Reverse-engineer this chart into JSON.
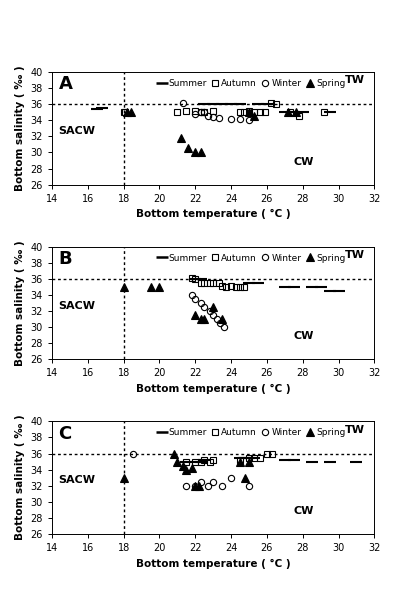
{
  "panels": [
    "A",
    "B",
    "C"
  ],
  "xlim": [
    14,
    32
  ],
  "ylim": [
    26,
    40
  ],
  "xticks": [
    14,
    16,
    18,
    20,
    22,
    24,
    26,
    28,
    30,
    32
  ],
  "yticks": [
    26,
    28,
    30,
    32,
    34,
    36,
    38,
    40
  ],
  "xlabel": "Bottom temperature ( °C )",
  "ylabel": "Bottom salinity ( ‰ )",
  "vline_x": 18,
  "hline_y": 36,
  "label_TW": "TW",
  "label_SACW": "SACW",
  "label_CW": "CW",
  "A": {
    "summer": [
      [
        16.5,
        35.4
      ],
      [
        16.8,
        35.5
      ],
      [
        22.5,
        36.0
      ],
      [
        23.0,
        36.0
      ],
      [
        23.5,
        36.0
      ],
      [
        24.0,
        36.0
      ],
      [
        24.5,
        36.0
      ],
      [
        25.5,
        36.0
      ],
      [
        26.0,
        36.0
      ],
      [
        27.0,
        35.0
      ],
      [
        27.5,
        35.0
      ],
      [
        28.0,
        35.0
      ],
      [
        29.5,
        35.0
      ]
    ],
    "autumn": [
      [
        18.0,
        35.0
      ],
      [
        18.1,
        35.0
      ],
      [
        21.0,
        35.0
      ],
      [
        21.5,
        35.1
      ],
      [
        22.0,
        35.1
      ],
      [
        22.3,
        35.0
      ],
      [
        22.5,
        35.0
      ],
      [
        23.0,
        35.1
      ],
      [
        24.5,
        35.0
      ],
      [
        24.7,
        35.0
      ],
      [
        25.0,
        35.1
      ],
      [
        25.3,
        35.0
      ],
      [
        25.6,
        35.0
      ],
      [
        25.9,
        35.0
      ],
      [
        26.2,
        36.1
      ],
      [
        26.5,
        36.0
      ],
      [
        27.3,
        35.0
      ],
      [
        27.8,
        34.5
      ],
      [
        29.2,
        35.0
      ]
    ],
    "winter": [
      [
        21.3,
        36.1
      ],
      [
        22.0,
        34.8
      ],
      [
        22.3,
        35.0
      ],
      [
        22.5,
        35.0
      ],
      [
        22.7,
        34.5
      ],
      [
        23.0,
        34.4
      ],
      [
        23.3,
        34.3
      ],
      [
        24.0,
        34.2
      ],
      [
        24.5,
        34.1
      ],
      [
        25.0,
        34.0
      ]
    ],
    "spring": [
      [
        18.2,
        35.0
      ],
      [
        18.4,
        35.0
      ],
      [
        21.2,
        31.8
      ],
      [
        21.6,
        30.5
      ],
      [
        22.0,
        30.0
      ],
      [
        22.3,
        30.0
      ],
      [
        25.0,
        35.0
      ],
      [
        25.3,
        34.5
      ],
      [
        27.2,
        35.0
      ],
      [
        27.6,
        35.0
      ]
    ]
  },
  "B": {
    "summer": [
      [
        22.0,
        36.0
      ],
      [
        22.3,
        36.0
      ],
      [
        25.0,
        35.5
      ],
      [
        25.5,
        35.5
      ],
      [
        27.0,
        35.0
      ],
      [
        27.5,
        35.0
      ],
      [
        28.5,
        35.0
      ],
      [
        29.0,
        35.0
      ],
      [
        29.5,
        34.5
      ],
      [
        30.0,
        34.5
      ]
    ],
    "autumn": [
      [
        21.8,
        36.1
      ],
      [
        22.0,
        36.0
      ],
      [
        22.3,
        35.5
      ],
      [
        22.5,
        35.5
      ],
      [
        22.8,
        35.5
      ],
      [
        23.0,
        35.5
      ],
      [
        23.3,
        35.5
      ],
      [
        23.5,
        35.1
      ],
      [
        23.7,
        35.0
      ],
      [
        24.0,
        35.1
      ],
      [
        24.3,
        35.0
      ],
      [
        24.5,
        35.0
      ],
      [
        24.7,
        35.0
      ]
    ],
    "winter": [
      [
        21.8,
        34.0
      ],
      [
        22.0,
        33.5
      ],
      [
        22.3,
        33.0
      ],
      [
        22.5,
        32.5
      ],
      [
        22.8,
        32.0
      ],
      [
        23.0,
        31.5
      ],
      [
        23.2,
        31.0
      ],
      [
        23.4,
        30.5
      ],
      [
        23.6,
        30.0
      ]
    ],
    "spring": [
      [
        18.0,
        35.0
      ],
      [
        19.5,
        35.0
      ],
      [
        20.0,
        35.0
      ],
      [
        22.0,
        31.5
      ],
      [
        22.3,
        31.0
      ],
      [
        22.5,
        31.0
      ],
      [
        23.0,
        32.5
      ],
      [
        23.5,
        31.0
      ]
    ]
  },
  "C": {
    "summer": [
      [
        21.5,
        35.0
      ],
      [
        22.0,
        35.0
      ],
      [
        22.3,
        35.0
      ],
      [
        22.5,
        35.2
      ],
      [
        24.5,
        35.5
      ],
      [
        24.8,
        35.5
      ],
      [
        25.0,
        35.5
      ],
      [
        25.3,
        35.5
      ],
      [
        27.0,
        35.2
      ],
      [
        27.5,
        35.2
      ],
      [
        28.5,
        35.0
      ],
      [
        29.5,
        35.0
      ],
      [
        31.0,
        35.0
      ]
    ],
    "autumn": [
      [
        21.5,
        35.0
      ],
      [
        22.0,
        35.0
      ],
      [
        22.3,
        35.0
      ],
      [
        22.5,
        35.2
      ],
      [
        22.8,
        35.0
      ],
      [
        23.0,
        35.2
      ],
      [
        24.5,
        35.2
      ],
      [
        25.0,
        35.5
      ],
      [
        25.3,
        35.5
      ],
      [
        25.6,
        35.5
      ],
      [
        26.0,
        36.0
      ],
      [
        26.3,
        36.0
      ]
    ],
    "winter": [
      [
        18.5,
        36.0
      ],
      [
        21.5,
        32.0
      ],
      [
        22.0,
        32.0
      ],
      [
        22.3,
        32.5
      ],
      [
        22.7,
        32.0
      ],
      [
        23.0,
        32.5
      ],
      [
        23.5,
        32.0
      ],
      [
        24.0,
        33.0
      ],
      [
        25.0,
        32.0
      ]
    ],
    "spring": [
      [
        18.0,
        33.0
      ],
      [
        20.8,
        36.0
      ],
      [
        21.0,
        35.0
      ],
      [
        21.3,
        34.5
      ],
      [
        21.5,
        34.0
      ],
      [
        21.8,
        34.2
      ],
      [
        22.0,
        32.0
      ],
      [
        22.2,
        32.0
      ],
      [
        24.5,
        35.0
      ],
      [
        24.8,
        33.0
      ],
      [
        25.0,
        35.0
      ]
    ]
  },
  "background_color": "#ffffff"
}
